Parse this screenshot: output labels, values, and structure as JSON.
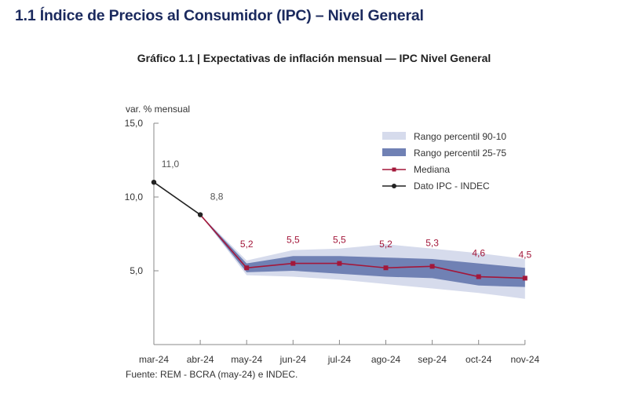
{
  "section": {
    "title": "1.1 Índice de Precios al Consumidor (IPC) – Nivel General"
  },
  "chart_title": "Gráfico 1.1 | Expectativas de inflación mensual — IPC Nivel General",
  "source": "Fuente: REM - BCRA (may-24) e INDEC.",
  "colors": {
    "band_90_10": "#d6dbec",
    "band_25_75": "#7081b4",
    "median": "#a3173a",
    "ipc": "#222222",
    "axis": "#888888",
    "label_ipc": "#555555"
  },
  "chart_data": {
    "type": "line",
    "title": "Gráfico 1.1 | Expectativas de inflación mensual — IPC Nivel General",
    "xlabel": "",
    "ylabel": "var. % mensual",
    "ylim": [
      0,
      15
    ],
    "yticks": [
      5,
      10,
      15
    ],
    "ytick_labels": [
      "5,0",
      "10,0",
      "15,0"
    ],
    "categories": [
      "mar-24",
      "abr-24",
      "may-24",
      "jun-24",
      "jul-24",
      "ago-24",
      "sep-24",
      "oct-24",
      "nov-24"
    ],
    "grid": false,
    "legend_position": "top-right",
    "legend": [
      {
        "key": "p90_10",
        "label": "Rango percentil 90-10",
        "kind": "band-light"
      },
      {
        "key": "p25_75",
        "label": "Rango percentil 25-75",
        "kind": "band-dark"
      },
      {
        "key": "median",
        "label": "Mediana",
        "kind": "line-median"
      },
      {
        "key": "ipc",
        "label": "Dato IPC - INDEC",
        "kind": "line-ipc"
      }
    ],
    "series": [
      {
        "name": "Dato IPC - INDEC",
        "categories": [
          "mar-24",
          "abr-24"
        ],
        "values": [
          11.0,
          8.8
        ],
        "labels": [
          "11,0",
          "8,8"
        ]
      },
      {
        "name": "Mediana",
        "categories": [
          "may-24",
          "jun-24",
          "jul-24",
          "ago-24",
          "sep-24",
          "oct-24",
          "nov-24"
        ],
        "values": [
          5.2,
          5.5,
          5.5,
          5.2,
          5.3,
          4.6,
          4.5
        ],
        "labels": [
          "5,2",
          "5,5",
          "5,5",
          "5,2",
          "5,3",
          "4,6",
          "4,5"
        ]
      }
    ],
    "bands": {
      "categories": [
        "abr-24",
        "may-24",
        "jun-24",
        "jul-24",
        "ago-24",
        "sep-24",
        "oct-24",
        "nov-24"
      ],
      "p90": [
        8.8,
        5.7,
        6.4,
        6.5,
        6.8,
        6.5,
        6.2,
        5.8
      ],
      "p75": [
        8.8,
        5.5,
        6.0,
        6.0,
        5.9,
        5.8,
        5.5,
        5.2
      ],
      "p25": [
        8.8,
        4.9,
        5.0,
        4.8,
        4.6,
        4.5,
        4.0,
        3.9
      ],
      "p10": [
        8.8,
        4.7,
        4.6,
        4.4,
        4.1,
        3.8,
        3.5,
        3.1
      ]
    }
  }
}
